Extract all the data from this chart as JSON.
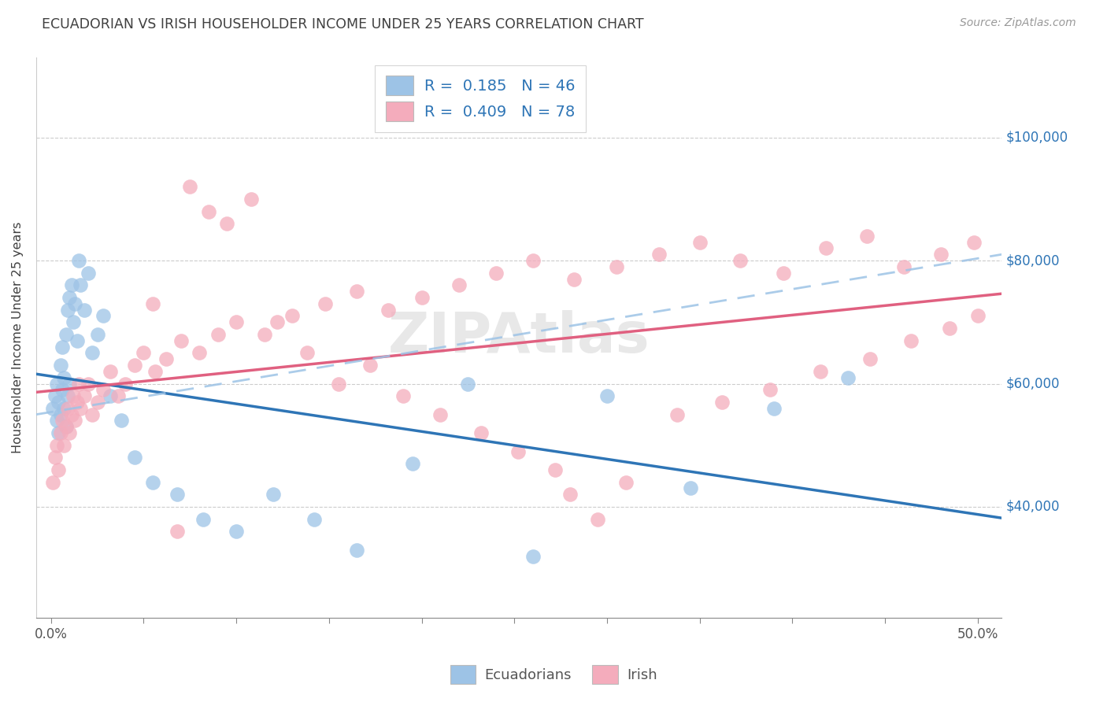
{
  "title": "ECUADORIAN VS IRISH HOUSEHOLDER INCOME UNDER 25 YEARS CORRELATION CHART",
  "source": "Source: ZipAtlas.com",
  "ylabel": "Householder Income Under 25 years",
  "ytick_labels": [
    "$40,000",
    "$60,000",
    "$80,000",
    "$100,000"
  ],
  "ytick_vals": [
    40000,
    60000,
    80000,
    100000
  ],
  "ylim_low": 22000,
  "ylim_high": 113000,
  "xlim_low": -0.008,
  "xlim_high": 0.513,
  "blue_scatter_color": "#9DC3E6",
  "pink_scatter_color": "#F4ACBC",
  "blue_line_color": "#2E75B6",
  "pink_line_color": "#E06080",
  "dashed_line_color": "#9DC3E6",
  "grid_color": "#CCCCCC",
  "title_color": "#404040",
  "source_color": "#999999",
  "legend_text_color": "#2E75B6",
  "axis_label_color": "#2E75B6",
  "legend1_line1": "R =  0.185   N = 46",
  "legend1_line2": "R =  0.409   N = 78",
  "legend2_label1": "Ecuadorians",
  "legend2_label2": "Irish",
  "watermark": "ZIPAtlas",
  "ec_x": [
    0.001,
    0.002,
    0.003,
    0.003,
    0.004,
    0.004,
    0.005,
    0.005,
    0.006,
    0.006,
    0.007,
    0.007,
    0.008,
    0.008,
    0.009,
    0.009,
    0.01,
    0.01,
    0.011,
    0.012,
    0.013,
    0.014,
    0.015,
    0.016,
    0.018,
    0.02,
    0.022,
    0.025,
    0.028,
    0.032,
    0.038,
    0.045,
    0.055,
    0.068,
    0.082,
    0.1,
    0.12,
    0.142,
    0.165,
    0.195,
    0.225,
    0.26,
    0.3,
    0.345,
    0.39,
    0.43
  ],
  "ec_y": [
    56000,
    58000,
    54000,
    60000,
    57000,
    52000,
    63000,
    55000,
    59000,
    66000,
    61000,
    56000,
    68000,
    53000,
    72000,
    58000,
    74000,
    60000,
    76000,
    70000,
    73000,
    67000,
    80000,
    76000,
    72000,
    78000,
    65000,
    68000,
    71000,
    58000,
    54000,
    48000,
    44000,
    42000,
    38000,
    36000,
    42000,
    38000,
    33000,
    47000,
    60000,
    32000,
    58000,
    43000,
    56000,
    61000
  ],
  "ir_x": [
    0.001,
    0.002,
    0.003,
    0.004,
    0.005,
    0.006,
    0.007,
    0.008,
    0.009,
    0.01,
    0.011,
    0.012,
    0.013,
    0.014,
    0.015,
    0.016,
    0.018,
    0.02,
    0.022,
    0.025,
    0.028,
    0.032,
    0.036,
    0.04,
    0.045,
    0.05,
    0.056,
    0.062,
    0.07,
    0.08,
    0.09,
    0.1,
    0.115,
    0.13,
    0.148,
    0.165,
    0.182,
    0.2,
    0.22,
    0.24,
    0.26,
    0.282,
    0.305,
    0.328,
    0.35,
    0.372,
    0.395,
    0.418,
    0.44,
    0.46,
    0.48,
    0.498,
    0.28,
    0.31,
    0.338,
    0.362,
    0.388,
    0.415,
    0.442,
    0.464,
    0.485,
    0.5,
    0.055,
    0.068,
    0.075,
    0.085,
    0.095,
    0.108,
    0.122,
    0.138,
    0.155,
    0.172,
    0.19,
    0.21,
    0.232,
    0.252,
    0.272,
    0.295
  ],
  "ir_y": [
    44000,
    48000,
    50000,
    46000,
    52000,
    54000,
    50000,
    53000,
    56000,
    52000,
    55000,
    58000,
    54000,
    57000,
    60000,
    56000,
    58000,
    60000,
    55000,
    57000,
    59000,
    62000,
    58000,
    60000,
    63000,
    65000,
    62000,
    64000,
    67000,
    65000,
    68000,
    70000,
    68000,
    71000,
    73000,
    75000,
    72000,
    74000,
    76000,
    78000,
    80000,
    77000,
    79000,
    81000,
    83000,
    80000,
    78000,
    82000,
    84000,
    79000,
    81000,
    83000,
    42000,
    44000,
    55000,
    57000,
    59000,
    62000,
    64000,
    67000,
    69000,
    71000,
    73000,
    36000,
    92000,
    88000,
    86000,
    90000,
    70000,
    65000,
    60000,
    63000,
    58000,
    55000,
    52000,
    49000,
    46000,
    38000
  ]
}
